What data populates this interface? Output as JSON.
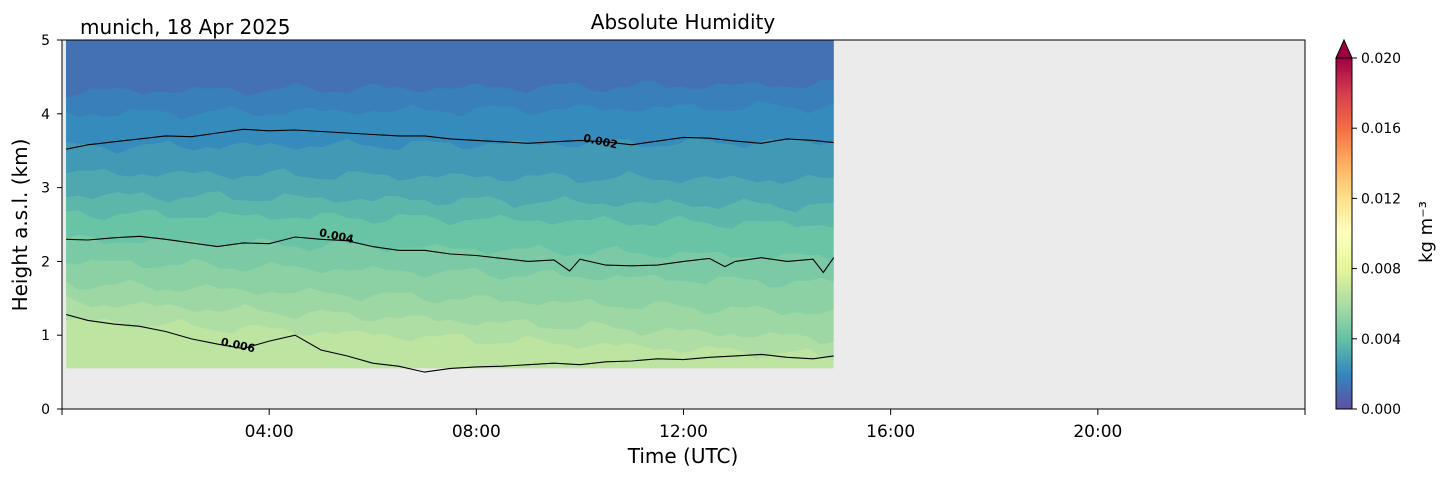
{
  "chart_data": {
    "type": "heatmap",
    "title": "Absolute Humidity",
    "site_label": "munich, 18 Apr 2025",
    "xlabel": "Time (UTC)",
    "ylabel": "Height a.s.l. (km)",
    "x_unit": "hours UTC",
    "xlim": [
      0,
      24
    ],
    "ylim": [
      0,
      5
    ],
    "x_ticks": [
      {
        "value": 4,
        "label": "04:00"
      },
      {
        "value": 8,
        "label": "08:00"
      },
      {
        "value": 12,
        "label": "12:00"
      },
      {
        "value": 16,
        "label": "16:00"
      },
      {
        "value": 20,
        "label": "20:00"
      }
    ],
    "y_ticks": [
      {
        "value": 0,
        "label": "0"
      },
      {
        "value": 1,
        "label": "1"
      },
      {
        "value": 2,
        "label": "2"
      },
      {
        "value": 3,
        "label": "3"
      },
      {
        "value": 4,
        "label": "4"
      },
      {
        "value": 5,
        "label": "5"
      }
    ],
    "data_extent": {
      "time_start": 0.08,
      "time_end": 14.9,
      "height_bottom": 0.55,
      "height_top": 5
    },
    "background_color": "#ebebeb",
    "colorbar": {
      "label": "kg m⁻³",
      "range": [
        0,
        0.02
      ],
      "extend": "max",
      "ticks": [
        {
          "value": 0.0,
          "label": "0.000"
        },
        {
          "value": 0.004,
          "label": "0.004"
        },
        {
          "value": 0.008,
          "label": "0.008"
        },
        {
          "value": 0.012,
          "label": "0.012"
        },
        {
          "value": 0.016,
          "label": "0.016"
        },
        {
          "value": 0.02,
          "label": "0.020"
        }
      ],
      "colormap": "Spectral_r",
      "stops": [
        "#5e4fa2",
        "#3288bd",
        "#66c2a5",
        "#abdda4",
        "#e6f598",
        "#ffffbf",
        "#fee08b",
        "#fdae61",
        "#f46d43",
        "#d53e4f",
        "#9e0142"
      ]
    },
    "contours": [
      {
        "level": 0.002,
        "label": "0.002",
        "label_time": 10.4,
        "label_height": 3.63,
        "profile": [
          [
            0.08,
            3.52
          ],
          [
            0.5,
            3.58
          ],
          [
            1.0,
            3.62
          ],
          [
            1.5,
            3.66
          ],
          [
            2.0,
            3.7
          ],
          [
            2.5,
            3.69
          ],
          [
            3.0,
            3.74
          ],
          [
            3.5,
            3.79
          ],
          [
            4.0,
            3.77
          ],
          [
            4.5,
            3.78
          ],
          [
            5.0,
            3.76
          ],
          [
            5.5,
            3.74
          ],
          [
            6.0,
            3.72
          ],
          [
            6.5,
            3.7
          ],
          [
            7.0,
            3.7
          ],
          [
            7.5,
            3.66
          ],
          [
            8.0,
            3.64
          ],
          [
            8.5,
            3.62
          ],
          [
            9.0,
            3.6
          ],
          [
            9.5,
            3.62
          ],
          [
            10.0,
            3.64
          ],
          [
            10.5,
            3.62
          ],
          [
            11.0,
            3.58
          ],
          [
            11.5,
            3.63
          ],
          [
            12.0,
            3.68
          ],
          [
            12.5,
            3.67
          ],
          [
            13.0,
            3.63
          ],
          [
            13.5,
            3.6
          ],
          [
            14.0,
            3.66
          ],
          [
            14.5,
            3.64
          ],
          [
            14.9,
            3.61
          ]
        ]
      },
      {
        "level": 0.004,
        "label": "0.004",
        "label_time": 5.3,
        "label_height": 2.35,
        "profile": [
          [
            0.08,
            2.3
          ],
          [
            0.5,
            2.29
          ],
          [
            1.0,
            2.32
          ],
          [
            1.5,
            2.34
          ],
          [
            2.0,
            2.3
          ],
          [
            2.5,
            2.25
          ],
          [
            3.0,
            2.2
          ],
          [
            3.5,
            2.25
          ],
          [
            4.0,
            2.24
          ],
          [
            4.5,
            2.33
          ],
          [
            5.0,
            2.3
          ],
          [
            5.5,
            2.28
          ],
          [
            6.0,
            2.2
          ],
          [
            6.5,
            2.15
          ],
          [
            7.0,
            2.15
          ],
          [
            7.5,
            2.1
          ],
          [
            8.0,
            2.08
          ],
          [
            8.5,
            2.04
          ],
          [
            9.0,
            2.0
          ],
          [
            9.5,
            2.02
          ],
          [
            9.8,
            1.87
          ],
          [
            10.0,
            2.03
          ],
          [
            10.5,
            1.95
          ],
          [
            11.0,
            1.94
          ],
          [
            11.5,
            1.95
          ],
          [
            12.0,
            2.0
          ],
          [
            12.5,
            2.04
          ],
          [
            12.8,
            1.93
          ],
          [
            13.0,
            2.0
          ],
          [
            13.5,
            2.05
          ],
          [
            14.0,
            2.0
          ],
          [
            14.5,
            2.03
          ],
          [
            14.7,
            1.85
          ],
          [
            14.9,
            2.05
          ]
        ]
      },
      {
        "level": 0.006,
        "label": "0.006",
        "label_time": 3.4,
        "label_height": 0.87,
        "profile": [
          [
            0.08,
            1.28
          ],
          [
            0.5,
            1.2
          ],
          [
            1.0,
            1.15
          ],
          [
            1.5,
            1.12
          ],
          [
            2.0,
            1.05
          ],
          [
            2.5,
            0.95
          ],
          [
            3.0,
            0.88
          ],
          [
            3.5,
            0.82
          ],
          [
            4.0,
            0.92
          ],
          [
            4.5,
            1.0
          ],
          [
            5.0,
            0.8
          ],
          [
            5.5,
            0.72
          ],
          [
            6.0,
            0.62
          ],
          [
            6.5,
            0.58
          ],
          [
            7.0,
            0.5
          ],
          [
            7.5,
            0.55
          ],
          [
            8.0,
            0.57
          ],
          [
            8.5,
            0.58
          ],
          [
            9.0,
            0.6
          ],
          [
            9.5,
            0.62
          ],
          [
            10.0,
            0.6
          ],
          [
            10.5,
            0.64
          ],
          [
            11.0,
            0.65
          ],
          [
            11.5,
            0.68
          ],
          [
            12.0,
            0.67
          ],
          [
            12.5,
            0.7
          ],
          [
            13.0,
            0.72
          ],
          [
            13.5,
            0.74
          ],
          [
            14.0,
            0.7
          ],
          [
            14.5,
            0.68
          ],
          [
            14.9,
            0.72
          ]
        ]
      }
    ],
    "fill_levels": [
      {
        "value": 0.0007,
        "height_at_start": 5.0,
        "height_at_end": 5.0
      },
      {
        "value": 0.0012,
        "height_at_start": 4.3,
        "height_at_end": 4.4
      },
      {
        "value": 0.0017,
        "height_at_start": 4.0,
        "height_at_end": 4.1
      },
      {
        "value": 0.0021,
        "height_at_start": 3.55,
        "height_at_end": 3.62
      },
      {
        "value": 0.0026,
        "height_at_start": 3.2,
        "height_at_end": 3.1
      },
      {
        "value": 0.0031,
        "height_at_start": 2.9,
        "height_at_end": 2.75
      },
      {
        "value": 0.0036,
        "height_at_start": 2.65,
        "height_at_end": 2.5
      },
      {
        "value": 0.0041,
        "height_at_start": 2.3,
        "height_at_end": 2.05
      },
      {
        "value": 0.0046,
        "height_at_start": 2.0,
        "height_at_end": 1.7
      },
      {
        "value": 0.0051,
        "height_at_start": 1.7,
        "height_at_end": 1.3
      },
      {
        "value": 0.0056,
        "height_at_start": 1.45,
        "height_at_end": 0.95
      },
      {
        "value": 0.0061,
        "height_at_start": 1.2,
        "height_at_end": 0.72
      }
    ]
  }
}
